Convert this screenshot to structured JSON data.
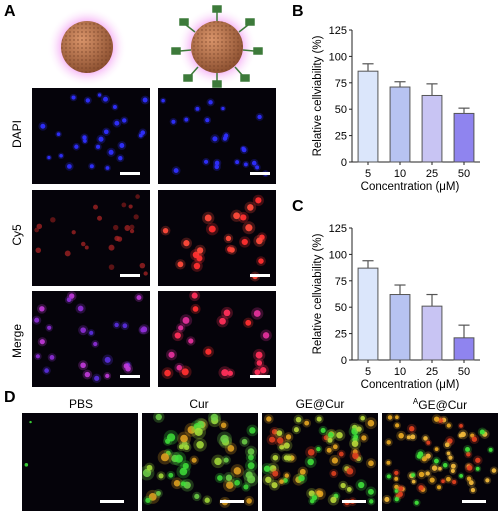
{
  "figure": {
    "panels": {
      "a": "A",
      "b": "B",
      "c": "C",
      "d": "D"
    },
    "panel_a": {
      "row_labels": [
        "DAPI",
        "Cy5",
        "Merge"
      ],
      "channel_colors": {
        "dapi": "#2f2fff",
        "cy5": "#ff2f2f",
        "merge": "#c23bdc",
        "halo": "#f08cf0",
        "nanoparticle": "#b87045",
        "ligand": "#3d7a3a"
      }
    },
    "panel_d": {
      "labels": [
        "PBS",
        "Cur",
        "GE@Cur"
      ],
      "label_4_super": "A",
      "label_4_main": "GE@Cur",
      "colors": {
        "green": "#3fe03a",
        "orange": "#e5a521",
        "red": "#e0401f"
      }
    }
  },
  "chart_data": [
    {
      "type": "bar",
      "panel": "B",
      "categories": [
        "5",
        "10",
        "25",
        "50"
      ],
      "values": [
        86,
        71,
        63,
        46
      ],
      "errors": [
        7,
        5,
        11,
        5
      ],
      "xlabel": "Concentration  (μM)",
      "ylabel": "Relative cellviability  (%)",
      "ylim": [
        0,
        125
      ],
      "yticks": [
        "0",
        "25",
        "50",
        "75",
        "100",
        "125"
      ],
      "bar_colors": [
        "#dbe6fb",
        "#b7c3f1",
        "#c8c4f3",
        "#8f84ef"
      ]
    },
    {
      "type": "bar",
      "panel": "C",
      "categories": [
        "5",
        "10",
        "25",
        "50"
      ],
      "values": [
        87,
        62,
        51,
        21
      ],
      "errors": [
        7,
        9,
        11,
        12
      ],
      "xlabel": "Concentration  (μM)",
      "ylabel": "Relative cellviability  (%)",
      "ylim": [
        0,
        125
      ],
      "yticks": [
        "0",
        "25",
        "50",
        "75",
        "100",
        "125"
      ],
      "bar_colors": [
        "#dbe6fb",
        "#b7c3f1",
        "#c8c4f3",
        "#8f84ef"
      ]
    }
  ]
}
